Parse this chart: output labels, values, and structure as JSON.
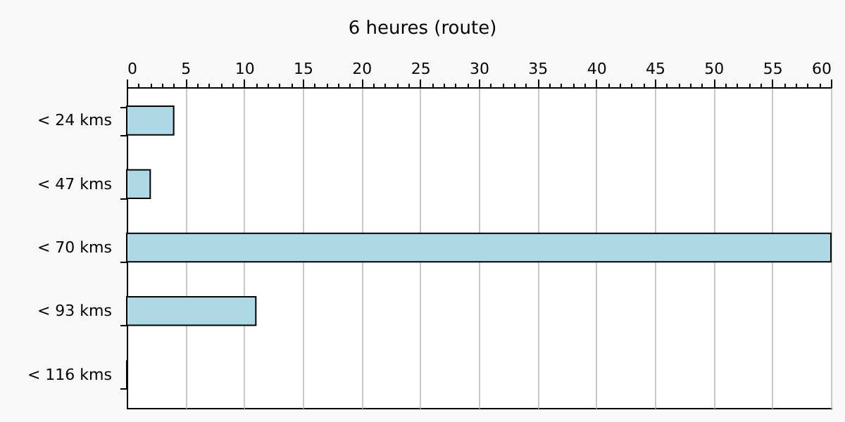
{
  "chart_data": {
    "type": "bar",
    "orientation": "horizontal",
    "title": "6 heures (route)",
    "categories": [
      "< 24 kms",
      "< 47 kms",
      "< 70 kms",
      "< 93 kms",
      "< 116 kms"
    ],
    "values": [
      4,
      2,
      60,
      11,
      0
    ],
    "color": "#add8e6",
    "xlim": [
      0,
      60
    ],
    "xticks": [
      0,
      {
        "value": 1,
        "label": null
      },
      {
        "value": 2,
        "label": null
      },
      {
        "value": 3,
        "label": null
      },
      {
        "value": 4,
        "label": null
      },
      5,
      {
        "value": 6,
        "label": null
      },
      {
        "value": 7,
        "label": null
      },
      {
        "value": 8,
        "label": null
      },
      {
        "value": 9,
        "label": null
      },
      10,
      {
        "value": 11,
        "label": null
      },
      {
        "value": 12,
        "label": null
      },
      {
        "value": 13,
        "label": null
      },
      {
        "value": 14,
        "label": null
      },
      15,
      {
        "value": 16,
        "label": null
      },
      {
        "value": 17,
        "label": null
      },
      {
        "value": 18,
        "label": null
      },
      {
        "value": 19,
        "label": null
      },
      20,
      {
        "value": 21,
        "label": null
      },
      {
        "value": 22,
        "label": null
      },
      {
        "value": 23,
        "label": null
      },
      {
        "value": 24,
        "label": null
      },
      25,
      {
        "value": 26,
        "label": null
      },
      {
        "value": 27,
        "label": null
      },
      {
        "value": 28,
        "label": null
      },
      {
        "value": 29,
        "label": null
      },
      30,
      {
        "value": 31,
        "label": null
      },
      {
        "value": 32,
        "label": null
      },
      {
        "value": 33,
        "label": null
      },
      {
        "value": 34,
        "label": null
      },
      35,
      {
        "value": 36,
        "label": null
      },
      {
        "value": 37,
        "label": null
      },
      {
        "value": 38,
        "label": null
      },
      {
        "value": 39,
        "label": null
      },
      40,
      {
        "value": 41,
        "label": null
      },
      {
        "value": 42,
        "label": null
      },
      {
        "value": 43,
        "label": null
      },
      {
        "value": 44,
        "label": null
      },
      45,
      {
        "value": 46,
        "label": null
      },
      {
        "value": 47,
        "label": null
      },
      {
        "value": 48,
        "label": null
      },
      {
        "value": 49,
        "label": null
      },
      50,
      {
        "value": 51,
        "label": null
      },
      {
        "value": 52,
        "label": null
      },
      {
        "value": 53,
        "label": null
      },
      {
        "value": 54,
        "label": null
      },
      55,
      {
        "value": 56,
        "label": null
      },
      {
        "value": 57,
        "label": null
      },
      {
        "value": 58,
        "label": null
      },
      {
        "value": 59,
        "label": null
      },
      60
    ],
    "grid": "x"
  }
}
